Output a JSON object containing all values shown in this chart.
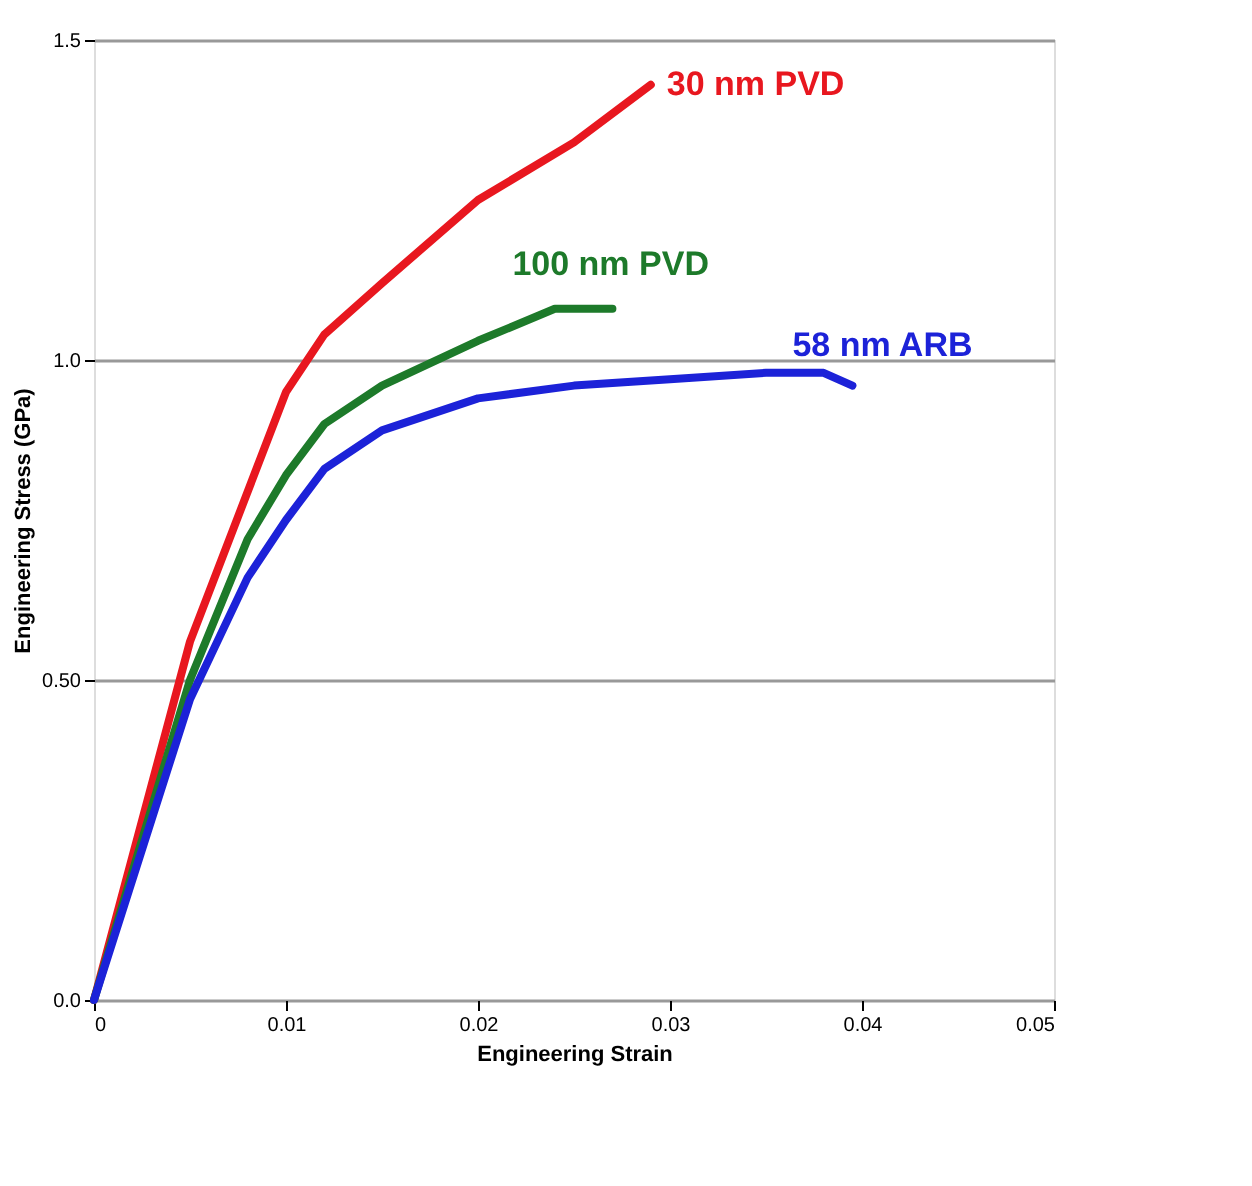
{
  "chart_data": {
    "type": "line",
    "xlabel": "Engineering Strain",
    "ylabel": "Engineering Stress (GPa)",
    "xlim": [
      0,
      0.05
    ],
    "xticks": [
      0,
      0.01,
      0.02,
      0.03,
      0.04,
      0.05
    ],
    "ylim": [
      0,
      1.5
    ],
    "yticks": [
      {
        "value": 0,
        "label": "0.0"
      },
      {
        "value": 0.5,
        "label": "0.50"
      },
      {
        "value": 1,
        "label": "1.0"
      },
      1.5
    ],
    "grid": "y",
    "legend": false,
    "marker": "none",
    "line_style": "solid",
    "series": [
      {
        "name": "30 nm PVD",
        "color": "#e8171f",
        "x": [
          0,
          0.005,
          0.01,
          0.012,
          0.015,
          0.02,
          0.025,
          0.029
        ],
        "values": [
          0,
          0.56,
          0.95,
          1.04,
          1.12,
          1.25,
          1.34,
          1.43
        ]
      },
      {
        "name": "100 nm PVD",
        "color": "#1d7a2a",
        "x": [
          0,
          0.005,
          0.008,
          0.01,
          0.012,
          0.015,
          0.02,
          0.024,
          0.027
        ],
        "values": [
          0,
          0.5,
          0.72,
          0.82,
          0.9,
          0.96,
          1.03,
          1.08,
          1.08
        ]
      },
      {
        "name": "58 nm ARB",
        "color": "#1c22d8",
        "x": [
          0,
          0.005,
          0.008,
          0.01,
          0.012,
          0.015,
          0.02,
          0.025,
          0.03,
          0.035,
          0.038,
          0.0395
        ],
        "values": [
          0,
          0.47,
          0.66,
          0.75,
          0.83,
          0.89,
          0.94,
          0.96,
          0.97,
          0.98,
          0.98,
          0.96
        ]
      }
    ]
  }
}
